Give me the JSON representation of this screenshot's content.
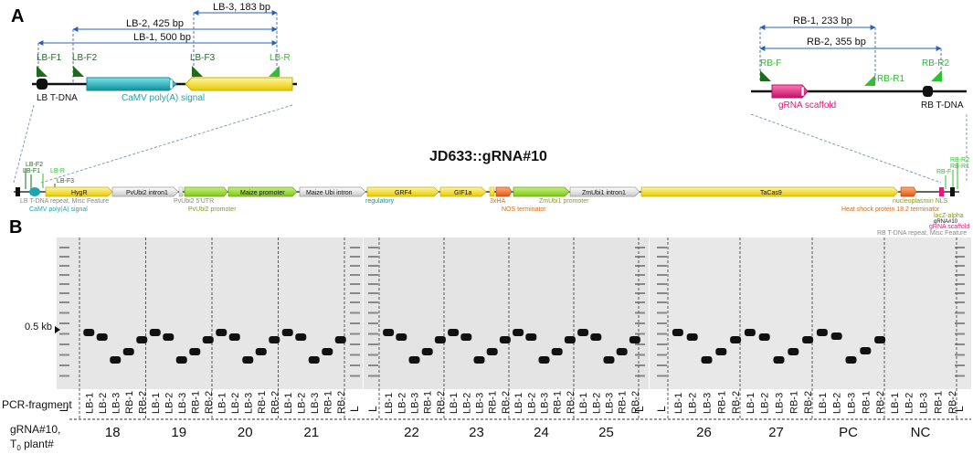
{
  "panel_a": {
    "label": "A",
    "lb_detail": {
      "ranges": [
        "LB-3, 183 bp",
        "LB-2, 425 bp",
        "LB-1, 500 bp"
      ],
      "primers": [
        "LB-F1",
        "LB-F2",
        "LB-F3",
        "LB-R"
      ],
      "labels": [
        "LB T-DNA",
        "CaMV poly(A) signal"
      ]
    },
    "rb_detail": {
      "ranges": [
        "RB-1, 233 bp",
        "RB-2, 355 bp"
      ],
      "primers": [
        "RB-F",
        "RB-R1",
        "RB-R2"
      ],
      "labels": [
        "gRNA scaffold",
        "RB T-DNA"
      ]
    },
    "construct_title": "JD633::gRNA#10",
    "map_features": [
      "HygR",
      "PvUbi2 intron1",
      "Maize promoter",
      "Maize Ubi intron",
      "GRF4",
      "GIF1a",
      "ZmUbi1 intron1",
      "TaCas9"
    ],
    "map_labels": [
      "LB T-DNA repeat, Misc Feature",
      "CaMV poly(A) signal",
      "PvUbi2 5'UTR",
      "PvUbi2 promoter",
      "regulatory",
      "3xHA",
      "NOS terminator",
      "ZmUbi1 promoter",
      "nucleoplasmin NLS",
      "Heat shock protein 18.2 terminator",
      "lacZ-alpha",
      "gRNA#10",
      "gRNA scaffold",
      "RB T-DNA repeat, Misc Feature"
    ],
    "map_primers": [
      "LB-F2",
      "LB-F1",
      "LB-R",
      "LB-F3",
      "RB-F",
      "RB-R2",
      "RB-R1"
    ]
  },
  "panel_b": {
    "label": "B",
    "size_marker": "0.5 kb",
    "row_pcr_label": "PCR-fragment",
    "row_plant_label_1": "gRNA#10,",
    "row_plant_label_2": "T0 plant#",
    "ladder_label": "L",
    "fragments": [
      "LB-1",
      "LB-2",
      "LB-3",
      "RB-1",
      "RB-2"
    ],
    "gel1_groups": [
      "18",
      "19",
      "20",
      "21"
    ],
    "gel2_groups": [
      "22",
      "23",
      "24",
      "25"
    ],
    "gel3_groups": [
      "26",
      "27",
      "PC",
      "NC"
    ]
  },
  "colors": {
    "dark_green": "#1e6b1e",
    "bright_green": "#2fbf2f",
    "cyan": "#1aa6b0",
    "yellow": "#ffe81a",
    "pink": "#e0197a",
    "blue": "#2563b8",
    "olive": "#8a9a1c",
    "orange": "#d86a1a"
  }
}
